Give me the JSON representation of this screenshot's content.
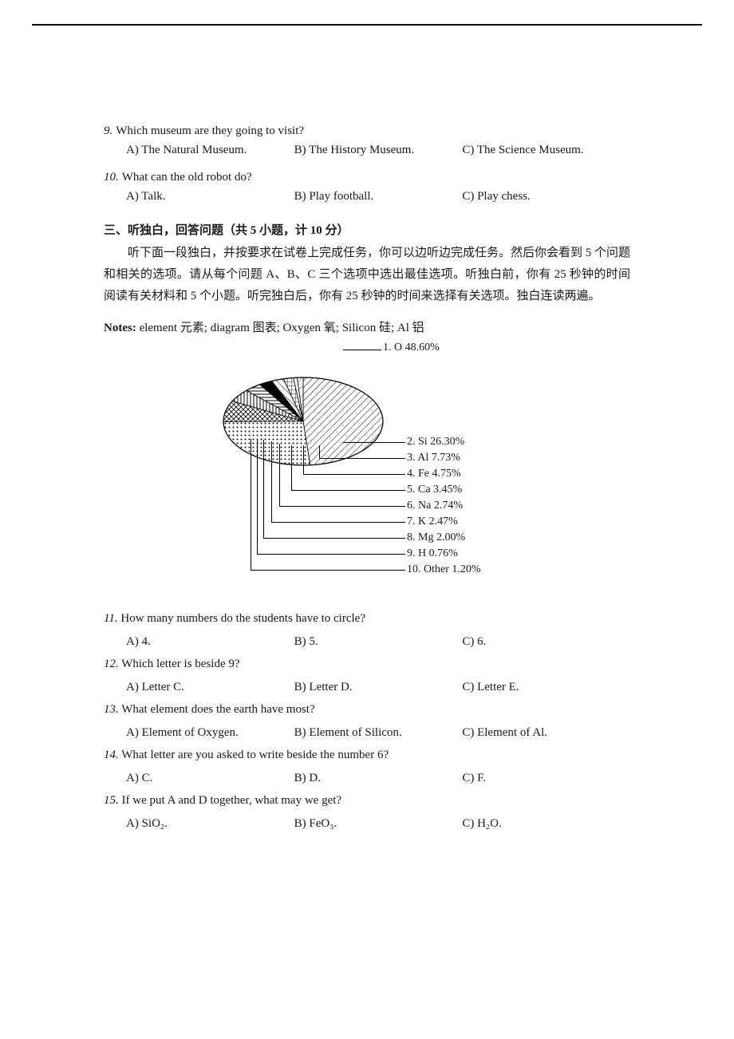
{
  "q9": {
    "num": "9.",
    "text": "Which museum are they going to visit?",
    "choices": {
      "a": "A) The Natural Museum.",
      "b": "B) The History Museum.",
      "c": "C) The Science Museum."
    }
  },
  "q10": {
    "num": "10.",
    "text": "What can the old robot do?",
    "choices": {
      "a": "A) Talk.",
      "b": "B) Play football.",
      "c": "C) Play chess."
    }
  },
  "section3": {
    "head": "三、听独白，回答问题（共 5 小题，计 10 分）",
    "p1": "听下面一段独白，并按要求在试卷上完成任务，你可以边听边完成任务。然后你会看到 5 个问题和相关的选项。请从每个问题 A、B、C 三个选项中选出最佳选项。听独白前，你有 25 秒钟的时间阅读有关材料和 5 个小题。听完独白后，你有 25 秒钟的时间来选择有关选项。独白连读两遍。"
  },
  "notes": {
    "label": "Notes:",
    "text": " element 元素; diagram 图表; Oxygen 氧; Silicon 硅; Al 铝"
  },
  "chart": {
    "type": "pie",
    "slices": [
      {
        "label": "1. O 48.60%",
        "value": 48.6,
        "fill": "hatch-diag"
      },
      {
        "label": "2. Si 26.30%",
        "value": 26.3,
        "fill": "hatch-dots"
      },
      {
        "label": "3. Al 7.73%",
        "value": 7.73,
        "fill": "hatch-cross"
      },
      {
        "label": "4. Fe 4.75%",
        "value": 4.75,
        "fill": "hatch-v"
      },
      {
        "label": "5. Ca 3.45%",
        "value": 3.45,
        "fill": "hatch-h"
      },
      {
        "label": "6. Na 2.74%",
        "value": 2.74,
        "fill": "solid"
      },
      {
        "label": "7. K  2.47%",
        "value": 2.47,
        "fill": "hatch-diag2"
      },
      {
        "label": "8. Mg 2.00%",
        "value": 2.0,
        "fill": "hatch-grid"
      },
      {
        "label": "9. H  0.76%",
        "value": 0.76,
        "fill": "white"
      },
      {
        "label": "10. Other 1.20%",
        "value": 1.2,
        "fill": "hatch-sparse"
      }
    ],
    "stroke": "#000000",
    "radius": 100,
    "tilt": 0.55,
    "background": "#ffffff",
    "label_fontsize": 14
  },
  "q11": {
    "num": "11.",
    "text": "How many numbers do the students have to circle?",
    "choices": {
      "a": "A) 4.",
      "b": "B) 5.",
      "c": "C) 6."
    }
  },
  "q12": {
    "num": "12.",
    "text": "Which letter is beside 9?",
    "choices": {
      "a": "A) Letter C.",
      "b": "B) Letter D.",
      "c": "C) Letter E."
    }
  },
  "q13": {
    "num": "13.",
    "text": "What element does the earth have most?",
    "choices": {
      "a": "A) Element of Oxygen.",
      "b": "B) Element of Silicon.",
      "c": "C) Element of Al."
    }
  },
  "q14": {
    "num": "14.",
    "text": "What letter are you asked to write beside the number 6?",
    "choices": {
      "a": "A) C.",
      "b": "B) D.",
      "c": "C) F."
    }
  },
  "q15": {
    "num": "15.",
    "text": "If we put A and D together, what may we get?",
    "choices": {
      "a": "A) SiO₂.",
      "b": "B) FeO₃.",
      "c": "C) H₂O."
    }
  }
}
